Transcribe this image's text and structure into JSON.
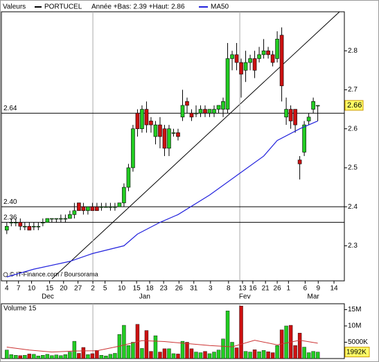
{
  "chart_data": {
    "type": "candlestick",
    "header": {
      "label": "Valeurs",
      "symbol": "PORTUCEL",
      "range": "Année +Bas: 2.39 +Haut: 2.86"
    },
    "credit": "© IT-Finance.com / Boursorama",
    "series": [
      {
        "name": "PORTUCEL",
        "up_color": "#22cc22",
        "down_color": "#cc1111",
        "open": [
          2.34,
          2.36,
          2.36,
          2.36,
          2.35,
          2.35,
          2.35,
          2.35,
          2.36,
          2.36,
          2.37,
          2.37,
          2.37,
          2.37,
          2.37,
          2.38,
          2.41,
          2.4,
          2.39,
          2.4,
          2.4,
          2.4,
          2.4,
          2.4,
          2.4,
          2.4,
          2.41,
          2.45,
          2.5,
          2.64,
          2.6,
          2.65,
          2.62,
          2.58,
          2.61,
          2.6,
          2.55,
          2.59,
          2.59,
          2.63,
          2.67,
          2.64,
          2.64,
          2.64,
          2.65,
          2.64,
          2.64,
          2.65,
          2.65,
          2.65,
          2.78,
          2.79,
          2.77,
          2.75,
          2.77,
          2.78,
          2.78,
          2.79,
          2.8,
          2.79,
          2.78,
          2.84,
          2.63,
          2.65,
          2.65,
          2.52,
          2.54,
          2.62,
          2.65,
          2.66
        ],
        "high": [
          2.36,
          2.37,
          2.37,
          2.37,
          2.36,
          2.36,
          2.36,
          2.36,
          2.37,
          2.37,
          2.37,
          2.37,
          2.38,
          2.38,
          2.39,
          2.41,
          2.41,
          2.41,
          2.4,
          2.41,
          2.41,
          2.41,
          2.41,
          2.41,
          2.41,
          2.41,
          2.46,
          2.51,
          2.61,
          2.65,
          2.66,
          2.67,
          2.63,
          2.62,
          2.63,
          2.61,
          2.61,
          2.6,
          2.6,
          2.7,
          2.68,
          2.65,
          2.66,
          2.66,
          2.66,
          2.65,
          2.66,
          2.66,
          2.68,
          2.82,
          2.8,
          2.82,
          2.78,
          2.8,
          2.79,
          2.8,
          2.81,
          2.83,
          2.81,
          2.8,
          2.85,
          2.86,
          2.68,
          2.66,
          2.65,
          2.53,
          2.62,
          2.64,
          2.68,
          2.66
        ],
        "low": [
          2.33,
          2.35,
          2.35,
          2.34,
          2.34,
          2.34,
          2.34,
          2.34,
          2.35,
          2.36,
          2.36,
          2.36,
          2.36,
          2.36,
          2.37,
          2.37,
          2.39,
          2.38,
          2.38,
          2.39,
          2.39,
          2.39,
          2.4,
          2.39,
          2.39,
          2.4,
          2.4,
          2.44,
          2.49,
          2.58,
          2.59,
          2.59,
          2.59,
          2.56,
          2.55,
          2.53,
          2.53,
          2.58,
          2.57,
          2.62,
          2.64,
          2.62,
          2.63,
          2.63,
          2.63,
          2.63,
          2.63,
          2.64,
          2.63,
          2.64,
          2.75,
          2.75,
          2.68,
          2.72,
          2.75,
          2.73,
          2.77,
          2.78,
          2.78,
          2.76,
          2.77,
          2.67,
          2.61,
          2.6,
          2.59,
          2.47,
          2.53,
          2.61,
          2.64,
          2.62
        ],
        "close": [
          2.35,
          2.36,
          2.36,
          2.35,
          2.35,
          2.34,
          2.35,
          2.35,
          2.36,
          2.37,
          2.37,
          2.37,
          2.37,
          2.37,
          2.38,
          2.39,
          2.39,
          2.39,
          2.4,
          2.39,
          2.39,
          2.4,
          2.4,
          2.4,
          2.4,
          2.41,
          2.45,
          2.5,
          2.6,
          2.6,
          2.65,
          2.61,
          2.61,
          2.61,
          2.58,
          2.55,
          2.6,
          2.59,
          2.58,
          2.66,
          2.66,
          2.63,
          2.64,
          2.65,
          2.64,
          2.65,
          2.65,
          2.66,
          2.67,
          2.78,
          2.79,
          2.77,
          2.74,
          2.77,
          2.78,
          2.75,
          2.79,
          2.8,
          2.79,
          2.77,
          2.83,
          2.71,
          2.65,
          2.62,
          2.61,
          2.51,
          2.61,
          2.63,
          2.67,
          2.66
        ]
      }
    ],
    "ma": {
      "name": "MA50",
      "color": "#2222dd",
      "x": [
        0,
        6,
        14,
        19,
        26,
        29,
        34,
        38,
        45,
        51,
        57,
        60,
        65,
        69
      ],
      "values": [
        2.22,
        2.24,
        2.26,
        2.28,
        2.3,
        2.33,
        2.36,
        2.38,
        2.43,
        2.48,
        2.53,
        2.57,
        2.6,
        2.62
      ]
    },
    "levels": [
      2.64,
      {
        "value": 2.4,
        "label": "2.40"
      },
      2.36
    ],
    "last": 2.66,
    "ylim": [
      2.21,
      2.9
    ],
    "yticks": [
      2.3,
      2.4,
      2.5,
      2.6,
      2.7,
      2.8
    ],
    "xlim": [
      -1.2,
      74.9
    ],
    "xticks": [
      {
        "value": 0,
        "label": "4"
      },
      {
        "value": 2.6,
        "label": "7"
      },
      {
        "value": 5.5,
        "label": "10"
      },
      {
        "value": 9.5,
        "label": "15"
      },
      {
        "value": 12.6,
        "label": "20"
      },
      {
        "value": 15.8,
        "label": "27"
      },
      {
        "value": 19.1,
        "label": "2"
      },
      {
        "value": 21.8,
        "label": "5"
      },
      {
        "value": 25.5,
        "label": "10"
      },
      {
        "value": 28.8,
        "label": "15"
      },
      {
        "value": 31.7,
        "label": "18"
      },
      {
        "value": 34.8,
        "label": "23"
      },
      {
        "value": 38.2,
        "label": "26"
      },
      {
        "value": 41.5,
        "label": "31"
      },
      {
        "value": 45.2,
        "label": "3"
      },
      {
        "value": 49.2,
        "label": "8"
      },
      {
        "value": 52.3,
        "label": "13"
      },
      {
        "value": 54.6,
        "label": "16"
      },
      {
        "value": 57.4,
        "label": "21"
      },
      {
        "value": 60,
        "label": "26"
      },
      {
        "value": 62.5,
        "label": "1"
      },
      {
        "value": 66.2,
        "label": "6"
      },
      {
        "value": 69.1,
        "label": "9"
      },
      {
        "value": 72.6,
        "label": "14"
      }
    ],
    "months": [
      {
        "value": 9.1,
        "label": "Dec"
      },
      {
        "value": 30.6,
        "label": "Jan"
      },
      {
        "value": 52.8,
        "label": "Fev"
      },
      {
        "value": 68,
        "label": "Mar"
      }
    ],
    "vlines": [
      19.1,
      51.7
    ],
    "volume": {
      "title": "Volume 15",
      "values": [
        2600000,
        1200000,
        1000000,
        900000,
        1000000,
        1400000,
        1300000,
        800000,
        1000000,
        1300000,
        900000,
        1100000,
        900000,
        1200000,
        2000000,
        5300000,
        1600000,
        3400000,
        1200000,
        1500000,
        2500000,
        1000000,
        800000,
        1300000,
        1600000,
        7400000,
        10200000,
        4000000,
        5000000,
        10500000,
        3100000,
        8600000,
        2200000,
        7000000,
        2000000,
        3000000,
        3000000,
        1500000,
        1400000,
        5300000,
        5000000,
        3000000,
        2000000,
        1800000,
        2200000,
        1500000,
        2000000,
        2600000,
        6000000,
        14600000,
        5000000,
        3300000,
        16100000,
        2200000,
        2000000,
        2700000,
        2100000,
        2500000,
        2100000,
        1800000,
        4000000,
        8800000,
        10000000,
        10200000,
        4000000,
        7800000,
        3500000,
        1800000,
        2200000,
        1992000
      ],
      "last": {
        "value": 1992000,
        "label": "1992K"
      },
      "ma": {
        "color": "#cc3333",
        "x": [
          0,
          5,
          10,
          15,
          20,
          25,
          30,
          35,
          40,
          45,
          50,
          55,
          60,
          65,
          69
        ],
        "values": [
          3500000,
          2600000,
          2000000,
          2300000,
          2400000,
          3800000,
          5500000,
          5200000,
          4600000,
          4000000,
          3600000,
          5600000,
          4200000,
          5600000,
          4700000
        ]
      },
      "ylim": [
        0,
        16800000
      ],
      "yticks": [
        {
          "value": 5000000,
          "label": "5000K"
        },
        {
          "value": 10000000,
          "label": "10M"
        },
        {
          "value": 15000000,
          "label": "15M"
        }
      ]
    }
  }
}
